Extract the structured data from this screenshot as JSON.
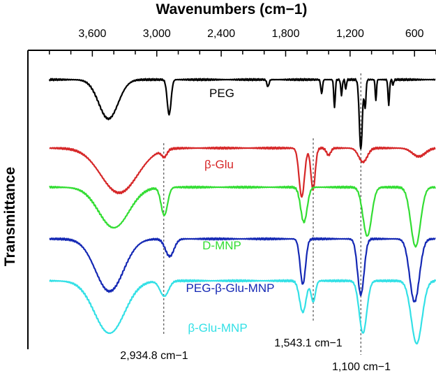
{
  "chart_data": {
    "type": "line",
    "title": "",
    "xlabel": "Wavenumbers (cm−1)",
    "ylabel": "Transmittance",
    "x_axis_position": "top",
    "x_reversed": true,
    "xlim": [
      4200,
      400
    ],
    "x_ticks": [
      3600,
      3000,
      2400,
      1800,
      1200,
      600
    ],
    "x_tick_labels": [
      "3,600",
      "3,000",
      "2,400",
      "1,800",
      "1,200",
      "600"
    ],
    "y_ticks_shown": false,
    "grid": false,
    "legend": "none (series labelled inline)",
    "series": [
      {
        "name": "PEG",
        "color": "#000000",
        "baseline": 114,
        "features": [
          {
            "x": 3450,
            "depth": 56,
            "width": 90
          },
          {
            "x": 2885,
            "depth": 50,
            "width": 18
          },
          {
            "x": 1965,
            "depth": 10,
            "width": 10
          },
          {
            "x": 1465,
            "depth": 20,
            "width": 8
          },
          {
            "x": 1345,
            "depth": 40,
            "width": 7
          },
          {
            "x": 1280,
            "depth": 22,
            "width": 7
          },
          {
            "x": 1240,
            "depth": 14,
            "width": 6
          },
          {
            "x": 1100,
            "depth": 100,
            "width": 14
          },
          {
            "x": 1060,
            "depth": 40,
            "width": 8
          },
          {
            "x": 960,
            "depth": 30,
            "width": 6
          },
          {
            "x": 840,
            "depth": 36,
            "width": 7
          },
          {
            "x": 800,
            "depth": 8,
            "width": 6
          }
        ]
      },
      {
        "name": "β-Glu",
        "color": "#d62728",
        "baseline": 212,
        "features": [
          {
            "x": 3350,
            "depth": 64,
            "width": 170
          },
          {
            "x": 2930,
            "depth": 10,
            "width": 25
          },
          {
            "x": 1650,
            "depth": 70,
            "width": 25
          },
          {
            "x": 1545,
            "depth": 60,
            "width": 20
          },
          {
            "x": 1400,
            "depth": 10,
            "width": 20
          },
          {
            "x": 1080,
            "depth": 20,
            "width": 40
          },
          {
            "x": 560,
            "depth": 12,
            "width": 60
          }
        ]
      },
      {
        "name": "D-MNP",
        "color": "#33dd33",
        "baseline": 268,
        "features": [
          {
            "x": 3400,
            "depth": 58,
            "width": 140
          },
          {
            "x": 2930,
            "depth": 40,
            "width": 30
          },
          {
            "x": 1630,
            "depth": 50,
            "width": 30
          },
          {
            "x": 1040,
            "depth": 70,
            "width": 40
          },
          {
            "x": 590,
            "depth": 85,
            "width": 45
          }
        ]
      },
      {
        "name": "PEG-β-Glu-MNP",
        "color": "#1428b4",
        "baseline": 342,
        "features": [
          {
            "x": 3440,
            "depth": 75,
            "width": 130
          },
          {
            "x": 2880,
            "depth": 25,
            "width": 40
          },
          {
            "x": 1640,
            "depth": 65,
            "width": 25
          },
          {
            "x": 1100,
            "depth": 80,
            "width": 30
          },
          {
            "x": 600,
            "depth": 90,
            "width": 45
          }
        ]
      },
      {
        "name": "β-Glu-MNP",
        "color": "#33e0e6",
        "baseline": 402,
        "features": [
          {
            "x": 3440,
            "depth": 75,
            "width": 140
          },
          {
            "x": 2930,
            "depth": 22,
            "width": 40
          },
          {
            "x": 1640,
            "depth": 45,
            "width": 30
          },
          {
            "x": 1543,
            "depth": 30,
            "width": 20
          },
          {
            "x": 1080,
            "depth": 75,
            "width": 35
          },
          {
            "x": 580,
            "depth": 90,
            "width": 50
          }
        ]
      }
    ],
    "annotations": [
      {
        "x": 2934.8,
        "label": "2,934.8 cm−1"
      },
      {
        "x": 1543.1,
        "label": "1,543.1 cm−1"
      },
      {
        "x": 1100,
        "label": "1,100 cm−1"
      }
    ]
  }
}
